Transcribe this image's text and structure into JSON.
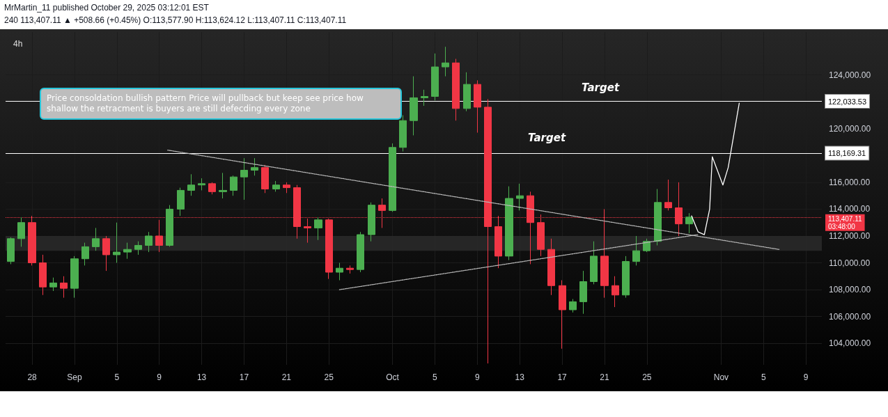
{
  "chart_data": {
    "type": "candlestick",
    "title": "4h",
    "x": [
      "2025-08-26",
      "2025-08-27",
      "2025-08-28",
      "2025-08-29",
      "2025-08-30",
      "2025-08-31",
      "2025-09-01",
      "2025-09-02",
      "2025-09-03",
      "2025-09-04",
      "2025-09-05",
      "2025-09-06",
      "2025-09-07",
      "2025-09-08",
      "2025-09-09",
      "2025-09-10",
      "2025-09-11",
      "2025-09-12",
      "2025-09-13",
      "2025-09-14",
      "2025-09-15",
      "2025-09-16",
      "2025-09-17",
      "2025-09-18",
      "2025-09-19",
      "2025-09-20",
      "2025-09-21",
      "2025-09-22",
      "2025-09-23",
      "2025-09-24",
      "2025-09-25",
      "2025-09-26",
      "2025-09-27",
      "2025-09-28",
      "2025-09-29",
      "2025-09-30",
      "2025-10-01",
      "2025-10-02",
      "2025-10-03",
      "2025-10-04",
      "2025-10-05",
      "2025-10-06",
      "2025-10-07",
      "2025-10-08",
      "2025-10-09",
      "2025-10-10",
      "2025-10-11",
      "2025-10-12",
      "2025-10-13",
      "2025-10-14",
      "2025-10-15",
      "2025-10-16",
      "2025-10-17",
      "2025-10-18",
      "2025-10-19",
      "2025-10-20",
      "2025-10-21",
      "2025-10-22",
      "2025-10-23",
      "2025-10-24",
      "2025-10-25",
      "2025-10-26",
      "2025-10-27",
      "2025-10-28",
      "2025-10-29"
    ],
    "ohlc": [
      [
        110100,
        111900,
        109900,
        111800
      ],
      [
        111800,
        113400,
        111200,
        113000
      ],
      [
        113000,
        113500,
        109800,
        110000
      ],
      [
        110000,
        110600,
        107600,
        108200
      ],
      [
        108200,
        108900,
        107900,
        108500
      ],
      [
        108500,
        109000,
        107400,
        108100
      ],
      [
        108100,
        110500,
        107400,
        110300
      ],
      [
        110300,
        111500,
        109800,
        111200
      ],
      [
        111200,
        112600,
        110900,
        111800
      ],
      [
        111800,
        112000,
        109400,
        110600
      ],
      [
        110600,
        113000,
        110000,
        110800
      ],
      [
        110800,
        111500,
        110300,
        111000
      ],
      [
        111000,
        111600,
        110600,
        111300
      ],
      [
        111300,
        112300,
        110800,
        112000
      ],
      [
        112000,
        113200,
        110800,
        111300
      ],
      [
        111300,
        114300,
        111200,
        114000
      ],
      [
        114000,
        115600,
        113500,
        115400
      ],
      [
        115400,
        116600,
        115000,
        115800
      ],
      [
        115800,
        116300,
        115400,
        115900
      ],
      [
        115900,
        116000,
        115100,
        115300
      ],
      [
        115300,
        116700,
        114800,
        115400
      ],
      [
        115400,
        116500,
        115000,
        116400
      ],
      [
        116400,
        117800,
        114700,
        116900
      ],
      [
        116900,
        117800,
        116500,
        117100
      ],
      [
        117100,
        117300,
        115200,
        115500
      ],
      [
        115500,
        116100,
        115300,
        115800
      ],
      [
        115800,
        116000,
        115200,
        115600
      ],
      [
        115600,
        115800,
        111800,
        112700
      ],
      [
        112700,
        113300,
        111500,
        112600
      ],
      [
        112600,
        113400,
        111700,
        113200
      ],
      [
        113200,
        113300,
        108800,
        109300
      ],
      [
        109300,
        110000,
        108700,
        109600
      ],
      [
        109600,
        109800,
        109200,
        109500
      ],
      [
        109500,
        112300,
        109300,
        112100
      ],
      [
        112100,
        114500,
        111600,
        114300
      ],
      [
        114300,
        114800,
        112600,
        113900
      ],
      [
        113900,
        118900,
        113800,
        118600
      ],
      [
        118600,
        121000,
        118300,
        120600
      ],
      [
        120600,
        123900,
        119500,
        122300
      ],
      [
        122300,
        122900,
        121700,
        122400
      ],
      [
        122400,
        125600,
        122100,
        124600
      ],
      [
        124600,
        126100,
        123900,
        124900
      ],
      [
        124900,
        125200,
        120600,
        121500
      ],
      [
        121500,
        124200,
        121300,
        123300
      ],
      [
        123300,
        123600,
        119700,
        121600
      ],
      [
        121600,
        122200,
        102500,
        112700
      ],
      [
        112700,
        113500,
        109600,
        110500
      ],
      [
        110500,
        115700,
        110200,
        114800
      ],
      [
        114800,
        115900,
        113900,
        115000
      ],
      [
        115000,
        115300,
        109900,
        113000
      ],
      [
        113000,
        113600,
        110500,
        111000
      ],
      [
        111000,
        111800,
        107600,
        108300
      ],
      [
        108300,
        108700,
        103600,
        106500
      ],
      [
        106500,
        107300,
        106300,
        107100
      ],
      [
        107100,
        109400,
        106200,
        108600
      ],
      [
        108600,
        111600,
        108400,
        110500
      ],
      [
        110500,
        114000,
        107400,
        108300
      ],
      [
        108300,
        109000,
        106700,
        107600
      ],
      [
        107600,
        110500,
        107400,
        110100
      ],
      [
        110100,
        112000,
        109800,
        110900
      ],
      [
        110900,
        111800,
        110800,
        111600
      ],
      [
        111600,
        115500,
        111300,
        114500
      ],
      [
        114500,
        116200,
        113900,
        114100
      ],
      [
        114100,
        116000,
        112000,
        112900
      ],
      [
        112900,
        113700,
        112200,
        113407.11
      ]
    ],
    "colors": [
      "#4caf50",
      "#4caf50",
      "#f23645",
      "#f23645",
      "#4caf50",
      "#f23645",
      "#4caf50",
      "#4caf50",
      "#4caf50",
      "#f23645",
      "#4caf50",
      "#4caf50",
      "#4caf50",
      "#4caf50",
      "#f23645",
      "#4caf50",
      "#4caf50",
      "#4caf50",
      "#4caf50",
      "#f23645",
      "#4caf50",
      "#4caf50",
      "#4caf50",
      "#4caf50",
      "#f23645",
      "#4caf50",
      "#f23645",
      "#f23645",
      "#f23645",
      "#4caf50",
      "#f23645",
      "#4caf50",
      "#f23645",
      "#4caf50",
      "#4caf50",
      "#f23645",
      "#4caf50",
      "#4caf50",
      "#4caf50",
      "#4caf50",
      "#4caf50",
      "#4caf50",
      "#f23645",
      "#4caf50",
      "#f23645",
      "#f23645",
      "#f23645",
      "#4caf50",
      "#4caf50",
      "#f23645",
      "#f23645",
      "#f23645",
      "#f23645",
      "#4caf50",
      "#4caf50",
      "#4caf50",
      "#f23645",
      "#f23645",
      "#4caf50",
      "#4caf50",
      "#4caf50",
      "#4caf50",
      "#f23645",
      "#f23645",
      "#4caf50"
    ],
    "series": [
      {
        "type": "line",
        "x": [
          "2025-09-09T19:00",
          "2025-11-06T11:00"
        ],
        "values": [
          118400,
          111000
        ],
        "color": "#bbbbbb",
        "line_style": "dotted",
        "marker": "none"
      },
      {
        "type": "line",
        "x": [
          "2025-09-26",
          "2025-10-29T19:00"
        ],
        "values": [
          108000,
          112100
        ],
        "color": "#bbbbbb",
        "line_style": "dotted",
        "marker": "none"
      },
      {
        "type": "line",
        "x": [
          "2025-10-29T05:00",
          "2025-10-29T20:00",
          "2025-10-30T10:00",
          "2025-10-30T22:00",
          "2025-10-31T04:00",
          "2025-11-01T04:00",
          "2025-11-01T16:00",
          "2025-11-02T17:00"
        ],
        "values": [
          113500,
          112300,
          112100,
          114000,
          117900,
          115800,
          117100,
          121900
        ],
        "color": "#ffffff",
        "line_style": "solid",
        "marker": "none"
      }
    ],
    "xlim": [
      "2025-08-25T12:00",
      "2025-11-10T12:00"
    ],
    "xticks": [
      {
        "value": "2025-08-28",
        "label": "28"
      },
      {
        "value": "2025-09-01",
        "label": "Sep"
      },
      {
        "value": "2025-09-05",
        "label": "5"
      },
      {
        "value": "2025-09-09",
        "label": "9"
      },
      {
        "value": "2025-09-13",
        "label": "13"
      },
      {
        "value": "2025-09-17",
        "label": "17"
      },
      {
        "value": "2025-09-21",
        "label": "21"
      },
      {
        "value": "2025-09-25",
        "label": "25"
      },
      {
        "value": "2025-10-01",
        "label": "Oct"
      },
      {
        "value": "2025-10-05",
        "label": "5"
      },
      {
        "value": "2025-10-09",
        "label": "9"
      },
      {
        "value": "2025-10-13",
        "label": "13"
      },
      {
        "value": "2025-10-17",
        "label": "17"
      },
      {
        "value": "2025-10-21",
        "label": "21"
      },
      {
        "value": "2025-10-25",
        "label": "25"
      },
      {
        "value": "2025-11-01",
        "label": "Nov"
      },
      {
        "value": "2025-11-05",
        "label": "5"
      },
      {
        "value": "2025-11-09",
        "label": "9"
      }
    ],
    "ylim": [
      102400,
      127200
    ],
    "yticks": [
      {
        "value": 104000,
        "label": "104,000.00"
      },
      {
        "value": 106000,
        "label": "106,000.00"
      },
      {
        "value": 108000,
        "label": "108,000.00"
      },
      {
        "value": 110000,
        "label": "110,000.00"
      },
      {
        "value": 112000,
        "label": "112,000.00"
      },
      {
        "value": 114000,
        "label": "114,000.00"
      },
      {
        "value": 116000,
        "label": "116,000.00"
      },
      {
        "value": 120000,
        "label": "120,000.00"
      },
      {
        "value": 124000,
        "label": "124,000.00"
      }
    ],
    "ref_lines": [
      {
        "axis": "y",
        "value": 122033.53,
        "label": "122,033.53",
        "color": "#ffffff",
        "line_style": "solid"
      },
      {
        "axis": "y",
        "value": 118169.31,
        "label": "118,169.31",
        "color": "#ffffff",
        "line_style": "solid"
      },
      {
        "axis": "y",
        "value": 113407.11,
        "label": "113,407.11\n03:48:00",
        "color": "#f23645",
        "line_style": "dotted"
      }
    ],
    "bands": [
      {
        "axis": "y",
        "from": 110900,
        "to": 112000,
        "color": "#2a2a2a"
      }
    ],
    "annotations": [
      "MrMartin_11 published October 29, 2025 03:12:01 EST",
      "240  113,407.11 ▲ +508.66 (+0.45%) O:113,577.90 H:113,624.12 L:113,407.11 C:113,407.11",
      "Price consoldation bullish pattern Price will pullback but keep see price how shallow the retracment is buyers are still defecding every zone",
      "Target",
      "Target"
    ],
    "grid": true
  }
}
